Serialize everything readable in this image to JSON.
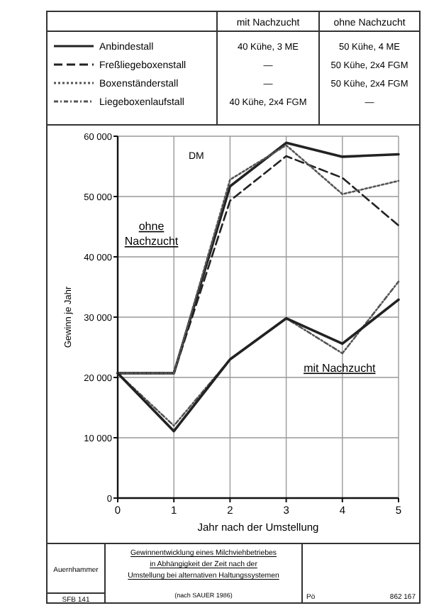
{
  "chart_data": {
    "type": "line",
    "title": "Gewinnentwicklung eines Milchviehbetriebes in Abhängigkeit der Zeit nach der Umstellung bei alternativen Haltungssystemen",
    "xlabel": "Jahr nach der Umstellung",
    "ylabel": "Gewinn je Jahr",
    "x": [
      0,
      1,
      2,
      3,
      4,
      5
    ],
    "xlim": [
      0,
      5
    ],
    "xticks": [
      0,
      1,
      2,
      3,
      4,
      5
    ],
    "ylim": [
      0,
      60000
    ],
    "yticks": [
      {
        "value": 0,
        "label": "0"
      },
      {
        "value": 10000,
        "label": "10 000"
      },
      {
        "value": 20000,
        "label": "20 000"
      },
      {
        "value": 30000,
        "label": "30 000"
      },
      {
        "value": 40000,
        "label": "40 000"
      },
      {
        "value": 50000,
        "label": "50 000"
      },
      {
        "value": 60000,
        "label": "60 000"
      }
    ],
    "grid": true,
    "legend": "top",
    "series": [
      {
        "name": "Anbindestall",
        "color": "#222222",
        "line_style": "solid",
        "values": [
          20700,
          20700,
          51700,
          58900,
          56600,
          57000
        ]
      },
      {
        "name": "Freßliegeboxenstall",
        "color": "#222222",
        "line_style": "dashed",
        "values": [
          20700,
          20700,
          49300,
          56700,
          53100,
          45200
        ]
      },
      {
        "name": "Boxenständerstall",
        "color": "#555555",
        "line_style": "dotted",
        "values": [
          20700,
          20700,
          52800,
          58500,
          50400,
          52600
        ]
      },
      {
        "name": "Liegeboxenlaufstall",
        "color": "#555555",
        "line_style": "dashdot",
        "values": [
          20700,
          12000,
          23000,
          29800,
          24000,
          35900
        ]
      },
      {
        "color": "#222222",
        "line_style": "solid",
        "values": [
          20700,
          11100,
          23000,
          29800,
          25600,
          32900
        ]
      }
    ],
    "annotations": [
      "mit Nachzucht",
      "ohne Nachzucht",
      "40 Kühe, 3 ME",
      "—",
      "—",
      "40 Kühe, 2x4 FGM",
      "50 Kühe, 4 ME",
      "50 Kühe, 2x4 FGM",
      "50 Kühe, 2x4 FGM",
      "—",
      "ohne Nachzucht",
      "mit Nachzucht",
      "DM",
      "Auernhammer",
      "SFB 141",
      "(nach SAUER 1986)",
      "Pö",
      "862 167"
    ]
  }
}
